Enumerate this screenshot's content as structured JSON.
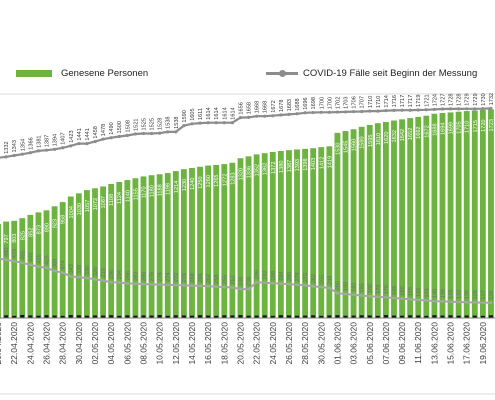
{
  "legend": {
    "recovered_label": "Genesene Personen",
    "cases_label": "COVID-19 Fälle seit Beginn der Messung"
  },
  "colors": {
    "recovered": "#6cb33f",
    "cases_line": "#8c8c8c",
    "active_line": "#a6a6a6",
    "small_bars": "#111111",
    "background": "#ffffff"
  },
  "chart_data": {
    "type": "bar",
    "title": "",
    "xlabel": "",
    "ylabel": "",
    "ylim": [
      0,
      2000
    ],
    "grid": false,
    "legend_position": "top",
    "x": [
      "20.04.2020",
      "21.04.2020",
      "22.04.2020",
      "23.04.2020",
      "24.04.2020",
      "25.04.2020",
      "26.04.2020",
      "27.04.2020",
      "28.04.2020",
      "29.04.2020",
      "30.04.2020",
      "01.05.2020",
      "02.05.2020",
      "03.05.2020",
      "04.05.2020",
      "05.05.2020",
      "06.05.2020",
      "07.05.2020",
      "08.05.2020",
      "09.05.2020",
      "10.05.2020",
      "11.05.2020",
      "12.05.2020",
      "13.05.2020",
      "14.05.2020",
      "15.05.2020",
      "16.05.2020",
      "17.05.2020",
      "18.05.2020",
      "19.05.2020",
      "20.05.2020",
      "21.05.2020",
      "22.05.2020",
      "23.05.2020",
      "24.05.2020",
      "25.05.2020",
      "26.05.2020",
      "27.05.2020",
      "28.05.2020",
      "29.05.2020",
      "30.05.2020",
      "31.05.2020",
      "01.06.2020",
      "02.06.2020",
      "03.06.2020",
      "04.06.2020",
      "05.06.2020",
      "06.06.2020",
      "07.06.2020",
      "08.06.2020",
      "09.06.2020",
      "10.06.2020",
      "11.06.2020",
      "12.06.2020",
      "13.06.2020",
      "14.06.2020",
      "15.06.2020",
      "16.06.2020",
      "17.06.2020",
      "18.06.2020",
      "19.06.2020",
      "20.06.2020"
    ],
    "x_tick_labels": [
      "20.04.2020",
      "22.04.2020",
      "24.04.2020",
      "26.04.2020",
      "28.04.2020",
      "30.04.2020",
      "02.05.2020",
      "04.05.2020",
      "06.05.2020",
      "08.05.2020",
      "10.05.2020",
      "12.05.2020",
      "14.05.2020",
      "16.05.2020",
      "18.05.2020",
      "20.05.2020",
      "22.05.2020",
      "24.05.2020",
      "26.05.2020",
      "28.05.2020",
      "30.05.2020",
      "01.06.2020",
      "03.06.2020",
      "05.06.2020",
      "07.06.2020",
      "09.06.2020",
      "11.06.2020",
      "13.06.2020",
      "15.06.2020",
      "17.06.2020",
      "19.06.2020"
    ],
    "series": [
      {
        "name": "Genesene Personen",
        "kind": "bar",
        "values": [
          778,
          797,
          803,
          825,
          852,
          873,
          890,
          923,
          958,
          1004,
          1030,
          1057,
          1072,
          1087,
          1108,
          1124,
          1140,
          1155,
          1170,
          1180,
          1188,
          1198,
          1214,
          1230,
          1240,
          1250,
          1260,
          1265,
          1272,
          1283,
          1320,
          1336,
          1352,
          1362,
          1372,
          1380,
          1387,
          1393,
          1398,
          1403,
          1412,
          1419,
          1530,
          1545,
          1560,
          1580,
          1595,
          1610,
          1620,
          1632,
          1642,
          1652,
          1662,
          1672,
          1688,
          1694,
          1699,
          1705,
          1710,
          1715,
          1720,
          1723
        ]
      },
      {
        "name": "COVID-19 Fälle seit Beginn der Messung",
        "kind": "line",
        "values": [
          1324,
          1332,
          1343,
          1354,
          1366,
          1381,
          1387,
          1394,
          1407,
          1423,
          1441,
          1441,
          1458,
          1478,
          1490,
          1500,
          1508,
          1521,
          1525,
          1525,
          1528,
          1538,
          1538,
          1590,
          1605,
          1611,
          1614,
          1614,
          1614,
          1614,
          1656,
          1658,
          1668,
          1668,
          1672,
          1678,
          1683,
          1688,
          1696,
          1698,
          1700,
          1700,
          1702,
          1703,
          1706,
          1707,
          1710,
          1710,
          1714,
          1716,
          1717,
          1717,
          1719,
          1721,
          1724,
          1727,
          1728,
          1728,
          1729,
          1729,
          1730,
          1732
        ]
      },
      {
        "kind": "line",
        "values": [
          492,
          480,
          470,
          455,
          440,
          425,
          415,
          388,
          374,
          343,
          338,
          330,
          320,
          310,
          296,
          294,
          286,
          283,
          280,
          278,
          276,
          274,
          272,
          270,
          268,
          266,
          262,
          258,
          255,
          252,
          240,
          238,
          296,
          292,
          288,
          284,
          280,
          276,
          270,
          262,
          255,
          248,
          205,
          198,
          192,
          185,
          180,
          175,
          170,
          165,
          160,
          155,
          150,
          145,
          140,
          138,
          135,
          132,
          130,
          128,
          127,
          126
        ]
      }
    ],
    "small_bar_values": [
      20,
      22,
      18,
      25,
      21,
      19,
      23,
      20,
      18,
      24,
      22,
      19,
      21,
      20,
      23,
      18,
      22,
      19,
      21,
      20,
      24,
      18,
      22,
      21,
      19,
      23,
      20,
      18,
      22,
      21,
      24,
      19,
      20,
      22,
      18,
      23,
      21,
      19,
      20,
      22,
      18,
      21,
      23,
      19,
      20,
      22,
      21,
      18,
      24,
      20,
      19,
      22,
      21,
      18,
      23,
      20,
      22,
      19,
      21,
      20,
      18,
      22
    ]
  }
}
